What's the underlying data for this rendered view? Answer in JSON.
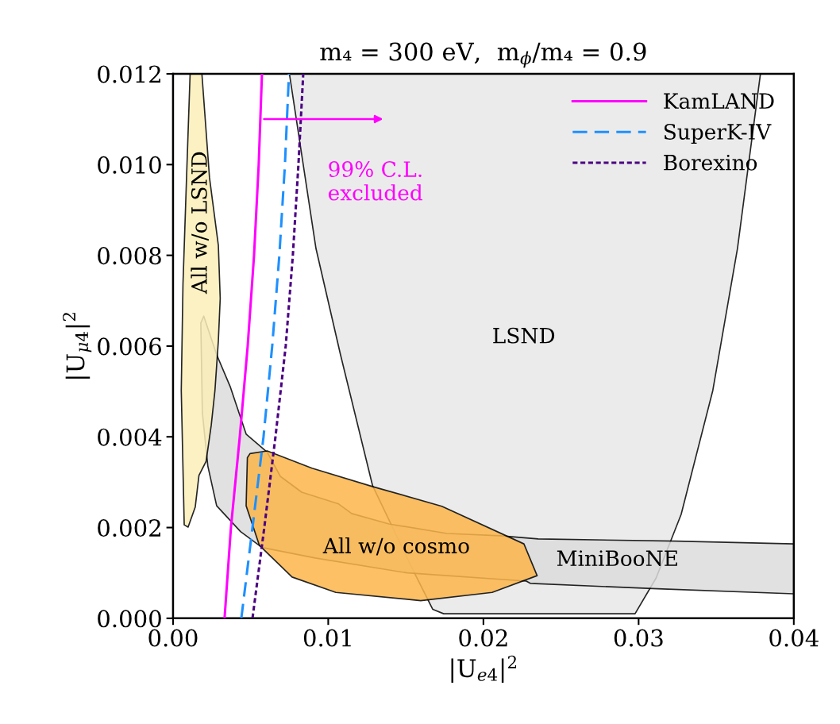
{
  "chart_data": {
    "type": "line",
    "title": "m₄ = 300 eV,  m$_{ϕ}$/m₄ = 0.9",
    "xlabel": "|U$_{e4}$|$^{2}$",
    "ylabel": "|U$_{μ4}$|$^{2}$",
    "xlim": [
      0,
      0.04
    ],
    "ylim": [
      0,
      0.012
    ],
    "xticks": [
      {
        "value": 0,
        "label": "0.00"
      },
      {
        "value": 0.01,
        "label": "0.01"
      },
      {
        "value": 0.02,
        "label": "0.02"
      },
      {
        "value": 0.03,
        "label": "0.03"
      },
      {
        "value": 0.04,
        "label": "0.04"
      }
    ],
    "yticks": [
      {
        "value": 0,
        "label": "0.000"
      },
      {
        "value": 0.002,
        "label": "0.002"
      },
      {
        "value": 0.004,
        "label": "0.004"
      },
      {
        "value": 0.006,
        "label": "0.006"
      },
      {
        "value": 0.008,
        "label": "0.008"
      },
      {
        "value": 0.01,
        "label": "0.010"
      },
      {
        "value": 0.012,
        "label": "0.012"
      }
    ],
    "grid": false,
    "legend": "top right",
    "series": [
      {
        "type": "area",
        "color": "#e8e8e8",
        "x": [
          0.0075,
          0.00921,
          0.01079,
          0.01286,
          0.01538,
          0.01673,
          0.01744,
          0.02977,
          0.03113,
          0.03274,
          0.03478,
          0.03637,
          0.03785
        ],
        "values": [
          0.012,
          0.00815,
          0.00581,
          0.00292,
          0.00112,
          0.0002,
          0.0001,
          0.0001,
          0.00089,
          0.00229,
          0.00502,
          0.00815,
          0.012
        ]
      },
      {
        "type": "area",
        "color": "#dcdcdc",
        "x": [
          0.00198,
          0.00281,
          0.00368,
          0.00471,
          0.00607,
          0.00691,
          0.00829,
          0.01067,
          0.01151,
          0.01391,
          0.01765,
          0.02107,
          0.02353,
          0.03241,
          0.04,
          0.04,
          0.0312,
          0.02302,
          0.02276,
          0.01509,
          0.00916,
          0.00573,
          0.00435,
          0.00281,
          0.00224,
          0.00189,
          0.00179
        ],
        "values": [
          0.00666,
          0.00581,
          0.00511,
          0.00406,
          0.00366,
          0.00313,
          0.00278,
          0.00252,
          0.00231,
          0.00208,
          0.00187,
          0.00182,
          0.00175,
          0.0017,
          0.00164,
          0.00054,
          0.00065,
          0.00077,
          0.00082,
          0.001,
          0.00133,
          0.00156,
          0.00191,
          0.00248,
          0.00336,
          0.00453,
          0.00651
        ]
      },
      {
        "type": "area",
        "color": "#fbefb8",
        "x": [
          0.0011,
          0.00186,
          0.00235,
          0.00292,
          0.00304,
          0.00292,
          0.0027,
          0.00246,
          0.00213,
          0.00167,
          0.00143,
          0.00097,
          0.00072,
          0.00053,
          0.00064,
          0.00087
        ],
        "values": [
          0.012,
          0.012,
          0.00971,
          0.00822,
          0.00705,
          0.00612,
          0.00502,
          0.00425,
          0.00346,
          0.00315,
          0.00245,
          0.00201,
          0.00206,
          0.00502,
          0.00736,
          0.00971
        ]
      },
      {
        "type": "area",
        "color": "#fdb64a",
        "x": [
          0.00496,
          0.00607,
          0.00895,
          0.01289,
          0.01732,
          0.02261,
          0.02346,
          0.02056,
          0.01596,
          0.01049,
          0.00767,
          0.00556,
          0.00471,
          0.00479
        ],
        "values": [
          0.00363,
          0.00369,
          0.00331,
          0.0029,
          0.00247,
          0.00164,
          0.00094,
          0.00057,
          0.00039,
          0.00057,
          0.00091,
          0.00161,
          0.00248,
          0.00354
        ]
      },
      {
        "name": "KamLAND",
        "color": "#ff00ff",
        "line_style": "solid",
        "x": [
          0.00332,
          0.00373,
          0.0043,
          0.00481,
          0.00522,
          0.00552,
          0.00573
        ],
        "values": [
          0,
          0.002,
          0.004,
          0.006,
          0.008,
          0.01,
          0.012
        ]
      },
      {
        "name": "SuperK-IV",
        "color": "#1e90ff",
        "line_style": "dashed",
        "x": [
          0.0044,
          0.00512,
          0.00583,
          0.00639,
          0.00685,
          0.00721,
          0.00747
        ],
        "values": [
          0,
          0.002,
          0.004,
          0.006,
          0.008,
          0.01,
          0.012
        ]
      },
      {
        "name": "Borexino",
        "color": "#4b0082",
        "line_style": "dotted",
        "x": [
          0.00512,
          0.00588,
          0.0066,
          0.00726,
          0.00772,
          0.00808,
          0.00839
        ],
        "values": [
          0,
          0.002,
          0.004,
          0.006,
          0.008,
          0.01,
          0.012
        ]
      }
    ],
    "annotations": [
      "99% C.L.\nexcluded",
      "LSND",
      "MiniBooNE",
      "All w/o cosmo",
      "All w/o LSND"
    ]
  }
}
